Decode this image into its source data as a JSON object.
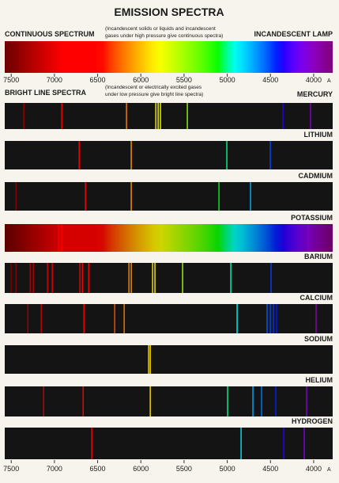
{
  "chart_data": {
    "type": "spectra",
    "title": "EMISSION SPECTRA",
    "xlim": [
      7575,
      3780
    ],
    "xticks": [
      7500,
      7000,
      6500,
      6000,
      5500,
      5000,
      4500,
      4000
    ],
    "x_unit": "A",
    "continuous": {
      "label": "CONTINUOUS SPECTRUM",
      "note": [
        "(Incandescent solids or liquids and incandescent",
        "gases under high pressure give continuous spectra)"
      ],
      "source": "INCANDESCENT LAMP"
    },
    "bright": {
      "label": "BRIGHT LINE SPECTRA",
      "note": [
        "(Incandescent or electrically excited gases",
        "under low pressure give bright line spectra)"
      ]
    },
    "series": [
      {
        "name": "MERCURY",
        "lines": [
          7354,
          6915,
          6166,
          5827,
          5800,
          5773,
          5462,
          4356,
          4036
        ]
      },
      {
        "name": "LITHIUM",
        "lines": [
          6714,
          6111,
          5005,
          4502
        ]
      },
      {
        "name": "CADMIUM",
        "lines": [
          7445,
          6641,
          6111,
          5096,
          4731
        ]
      },
      {
        "name": "POTASSIUM",
        "continuous_background": true,
        "lines": [
          6952,
          6915,
          4063
        ]
      },
      {
        "name": "BARIUM",
        "lines": [
          7500,
          7445,
          7281,
          7244,
          7080,
          7025,
          6705,
          6677,
          6604,
          6138,
          6111,
          5864,
          5837,
          5517,
          4959,
          4493
        ]
      },
      {
        "name": "CALCIUM",
        "lines": [
          7308,
          7153,
          6659,
          6303,
          6193,
          4886,
          4539,
          4502,
          4466,
          4429,
          3972
        ]
      },
      {
        "name": "SODIUM",
        "lines": [
          5910,
          5891
        ]
      },
      {
        "name": "HELIUM",
        "lines": [
          7125,
          6668,
          5891,
          4996,
          4703,
          4603,
          4438,
          4082
        ]
      },
      {
        "name": "HYDROGEN",
        "lines": [
          6568,
          4840,
          4347,
          4109
        ]
      }
    ]
  }
}
